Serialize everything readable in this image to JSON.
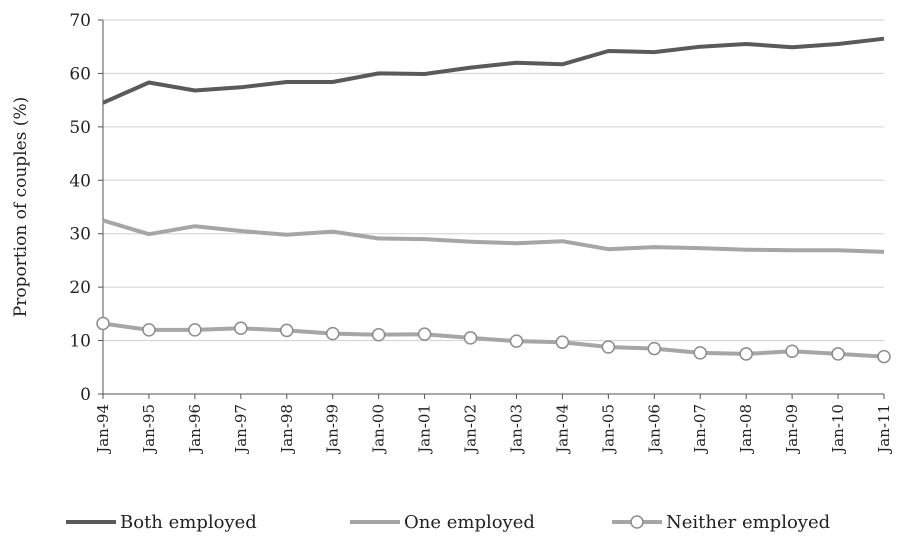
{
  "chart_data": {
    "type": "line",
    "title": "",
    "xlabel": "",
    "ylabel": "Proportion of couples (%)",
    "ylim": [
      0,
      70
    ],
    "yticks": [
      0,
      10,
      20,
      30,
      40,
      50,
      60,
      70
    ],
    "grid": true,
    "legend_position": "bottom",
    "x": [
      "Jan-94",
      "Jan-95",
      "Jan-96",
      "Jan-97",
      "Jan-98",
      "Jan-99",
      "Jan-00",
      "Jan-01",
      "Jan-02",
      "Jan-03",
      "Jan-04",
      "Jan-05",
      "Jan-06",
      "Jan-07",
      "Jan-08",
      "Jan-09",
      "Jan-10",
      "Jan-11"
    ],
    "series": [
      {
        "name": "Both employed",
        "color": "#5a5a5a",
        "marker": "none",
        "values": [
          54.5,
          58.3,
          56.8,
          57.4,
          58.4,
          58.4,
          60.0,
          59.9,
          61.1,
          62.0,
          61.7,
          64.2,
          64.0,
          65.0,
          65.5,
          64.9,
          65.5,
          66.5
        ]
      },
      {
        "name": "One employed",
        "color": "#a6a6a6",
        "marker": "none",
        "values": [
          32.5,
          29.9,
          31.4,
          30.5,
          29.8,
          30.4,
          29.1,
          29.0,
          28.5,
          28.2,
          28.6,
          27.1,
          27.5,
          27.3,
          27.0,
          26.9,
          26.9,
          26.6
        ]
      },
      {
        "name": "Neither employed",
        "color": "#a6a6a6",
        "marker": "circle",
        "values": [
          13.2,
          12.0,
          12.0,
          12.3,
          11.9,
          11.3,
          11.1,
          11.2,
          10.5,
          9.9,
          9.7,
          8.8,
          8.5,
          7.7,
          7.5,
          8.0,
          7.5,
          7.0
        ]
      }
    ]
  }
}
